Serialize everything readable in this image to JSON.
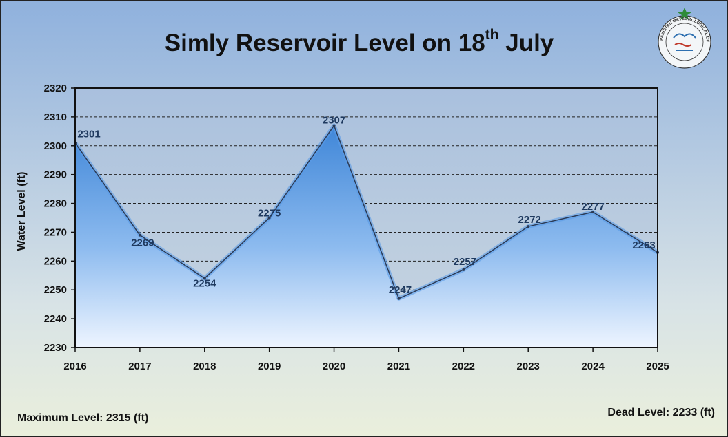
{
  "chart_data": {
    "type": "area",
    "title": "Simly Reservoir Level on 18",
    "title_superscript": "th",
    "title_suffix": " July",
    "xlabel": "",
    "ylabel": "Water Level (ft)",
    "categories": [
      "2016",
      "2017",
      "2018",
      "2019",
      "2020",
      "2021",
      "2022",
      "2023",
      "2024",
      "2025"
    ],
    "values": [
      2301,
      2269,
      2254,
      2275,
      2307,
      2247,
      2257,
      2272,
      2277,
      2263
    ],
    "ylim": [
      2230,
      2320
    ],
    "yticks": [
      2230,
      2240,
      2250,
      2260,
      2270,
      2280,
      2290,
      2300,
      2310,
      2320
    ],
    "grid": true,
    "legend": "none",
    "colors": {
      "fill_top": "#3f86d8",
      "fill_bottom": "#eef5ff",
      "line": "#2b3a55",
      "grid": "#333333"
    }
  },
  "footer": {
    "max_level": "Maximum Level: 2315 (ft)",
    "dead_level": "Dead Level: 2233 (ft)"
  },
  "logo": {
    "icon": "pakistan-meteorological-department-logo",
    "text": "PAKISTAN METEOROLOGICAL DEPARTMENT"
  }
}
